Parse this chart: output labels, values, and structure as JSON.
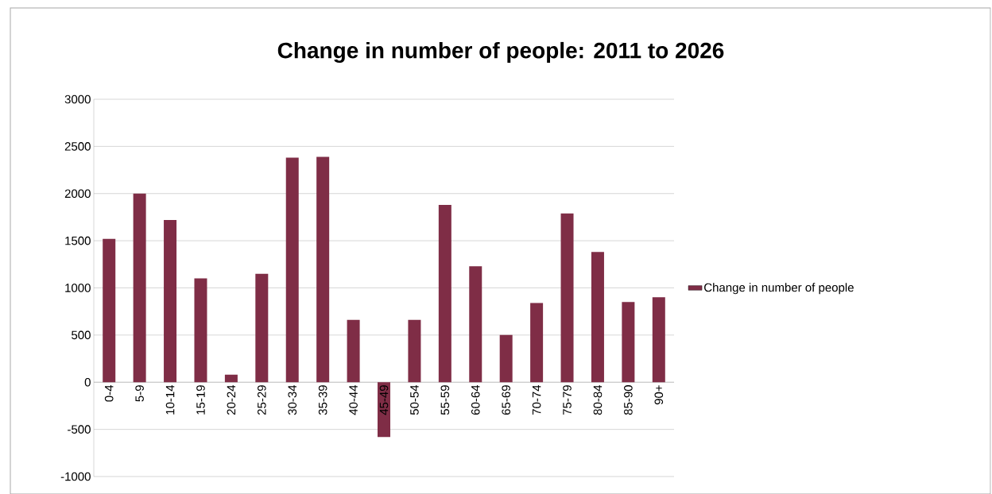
{
  "chart_data": {
    "type": "bar",
    "title": "Change in number of people:  2011 to 2026",
    "categories": [
      "0-4",
      "5-9",
      "10-14",
      "15-19",
      "20-24",
      "25-29",
      "30-34",
      "35-39",
      "40-44",
      "45-49",
      "50-54",
      "55-59",
      "60-64",
      "65-69",
      "70-74",
      "75-79",
      "80-84",
      "85-90",
      "90+"
    ],
    "series": [
      {
        "name": "Change in number of people",
        "color": "#7f2d46",
        "values": [
          1520,
          2000,
          1720,
          1100,
          80,
          1150,
          2380,
          2390,
          660,
          -580,
          660,
          1880,
          1230,
          500,
          840,
          1790,
          1380,
          850,
          900
        ]
      }
    ],
    "ylim": [
      -1000,
      3000
    ],
    "yticks": [
      -1000,
      -500,
      0,
      500,
      1000,
      1500,
      2000,
      2500,
      3000
    ],
    "grid": "y",
    "legend": "right"
  }
}
